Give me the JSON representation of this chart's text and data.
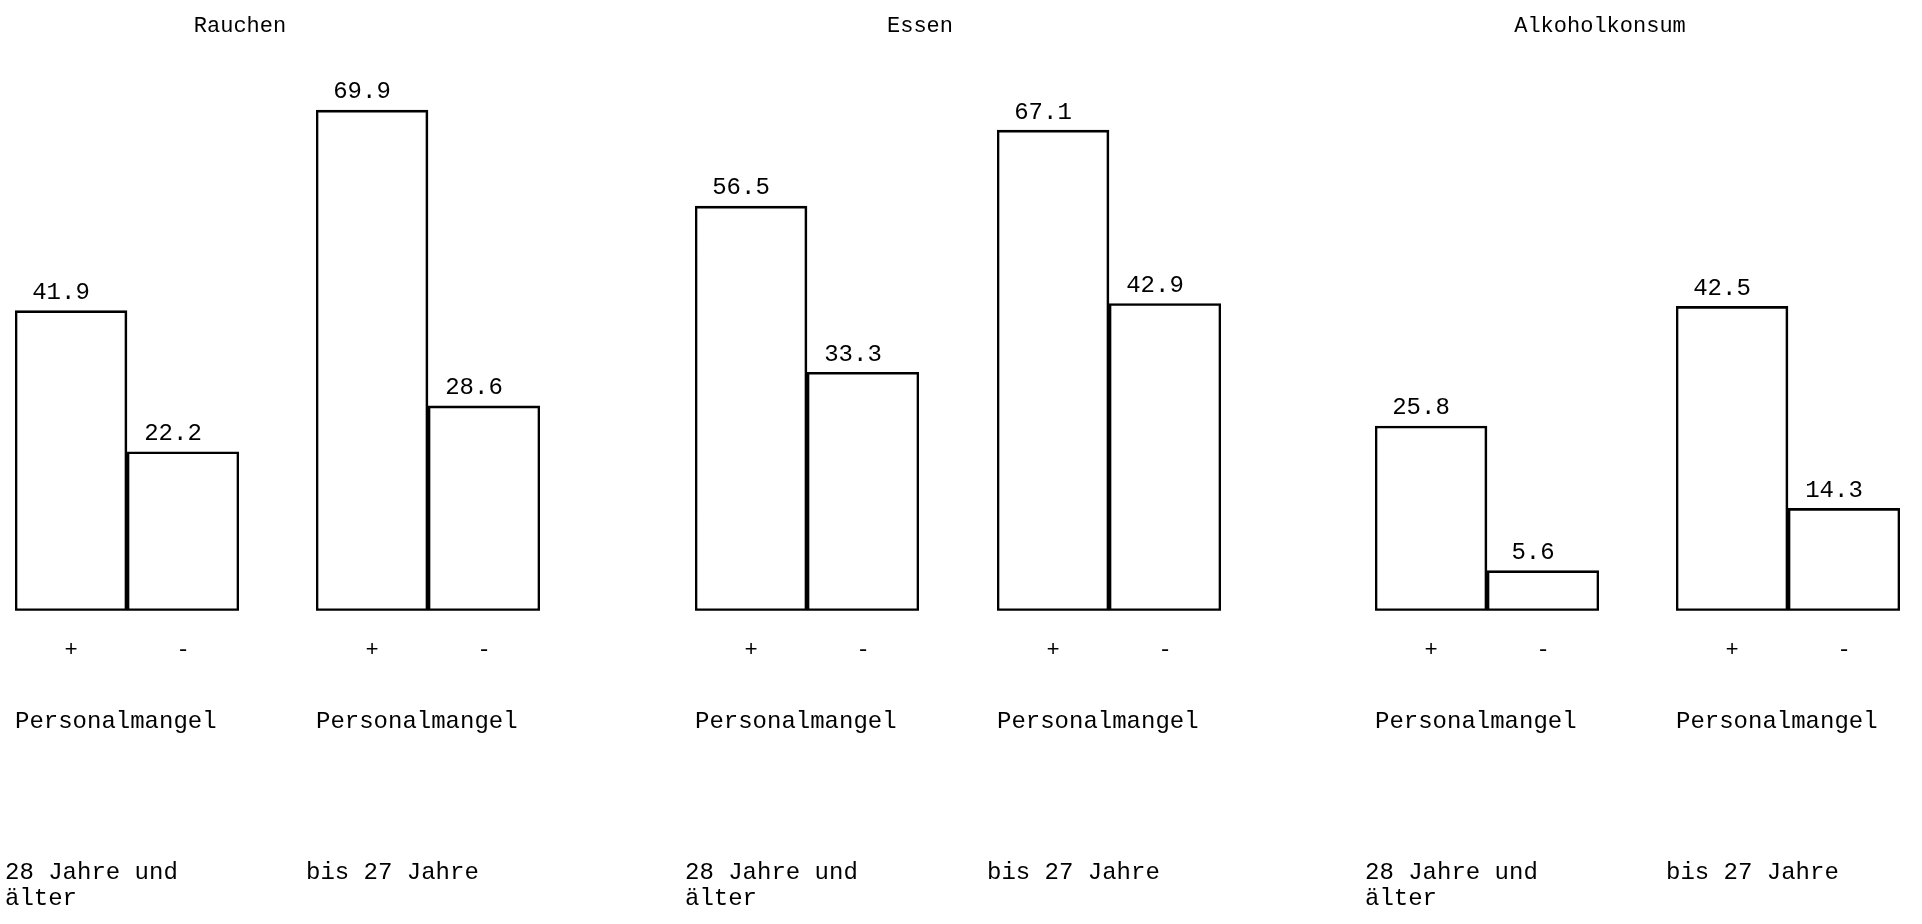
{
  "chart_data": [
    {
      "type": "bar",
      "title": "Rauchen",
      "categories": [
        "+",
        "-"
      ],
      "values": [
        41.9,
        22.2
      ],
      "color": "#000000",
      "data_labels": true,
      "xlabel": "Personalmangel",
      "annotations": [
        "28 Jahre und älter"
      ],
      "grid": false,
      "legend": false
    },
    {
      "type": "bar",
      "categories": [
        "+",
        "-"
      ],
      "values": [
        69.9,
        28.6
      ],
      "color": "#000000",
      "data_labels": true,
      "xlabel": "Personalmangel",
      "annotations": [
        "bis 27 Jahre"
      ],
      "grid": false,
      "legend": false
    },
    {
      "type": "bar",
      "title": "Essen",
      "categories": [
        "+",
        "-"
      ],
      "values": [
        56.5,
        33.3
      ],
      "color": "#000000",
      "data_labels": true,
      "xlabel": "Personalmangel",
      "annotations": [
        "28 Jahre und älter"
      ],
      "grid": false,
      "legend": false
    },
    {
      "type": "bar",
      "categories": [
        "+",
        "-"
      ],
      "values": [
        67.1,
        42.9
      ],
      "color": "#000000",
      "data_labels": true,
      "xlabel": "Personalmangel",
      "annotations": [
        "bis 27 Jahre"
      ],
      "grid": false,
      "legend": false
    },
    {
      "type": "bar",
      "title": "Alkoholkonsum",
      "categories": [
        "+",
        "-"
      ],
      "values": [
        25.8,
        5.6
      ],
      "color": "#000000",
      "data_labels": true,
      "xlabel": "Personalmangel",
      "annotations": [
        "28 Jahre und älter"
      ],
      "grid": false,
      "legend": false
    },
    {
      "type": "bar",
      "categories": [
        "+",
        "-"
      ],
      "values": [
        42.5,
        14.3
      ],
      "color": "#000000",
      "data_labels": true,
      "xlabel": "Personalmangel",
      "annotations": [
        "bis 27 Jahre"
      ],
      "grid": false,
      "legend": false
    }
  ]
}
